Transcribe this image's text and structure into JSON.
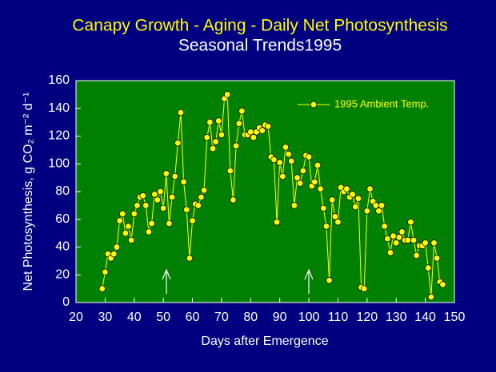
{
  "chart_data": {
    "type": "line",
    "title": "Canapy Growth - Aging - Daily Net Photosynthesis",
    "subtitle": "Seasonal Trends1995",
    "xlabel": "Days after Emergence",
    "ylabel": "Net Photosynthesis, g CO₂ m⁻² d⁻¹",
    "x": [
      29,
      30,
      31,
      32,
      33,
      34,
      35,
      36,
      37,
      38,
      39,
      40,
      41,
      42,
      43,
      44,
      45,
      46,
      47,
      48,
      49,
      50,
      51,
      52,
      53,
      54,
      55,
      56,
      57,
      58,
      59,
      60,
      61,
      62,
      63,
      64,
      65,
      66,
      67,
      68,
      69,
      70,
      71,
      72,
      73,
      74,
      75,
      76,
      77,
      78,
      79,
      80,
      81,
      82,
      83,
      84,
      85,
      86,
      87,
      88,
      89,
      90,
      91,
      92,
      93,
      94,
      95,
      96,
      97,
      98,
      99,
      100,
      101,
      102,
      103,
      104,
      105,
      106,
      107,
      108,
      109,
      110,
      111,
      112,
      113,
      114,
      115,
      116,
      117,
      118,
      119,
      120,
      121,
      122,
      123,
      124,
      125,
      126,
      127,
      128,
      129,
      130,
      131,
      132,
      133,
      134,
      135,
      136,
      137,
      138,
      139,
      140,
      141,
      142,
      143,
      144,
      145,
      146
    ],
    "series": [
      {
        "name": "1995 Ambient Temp.",
        "color": "#ffff00",
        "marker_color": "#ffff00",
        "values": [
          10,
          22,
          35,
          32,
          35,
          40,
          59,
          64,
          50,
          55,
          45,
          64,
          70,
          76,
          77,
          70,
          51,
          57,
          78,
          74,
          80,
          68,
          93,
          57,
          76,
          91,
          115,
          137,
          87,
          67,
          32,
          59,
          71,
          70,
          76,
          81,
          119,
          130,
          111,
          116,
          131,
          121,
          147,
          150,
          95,
          74,
          113,
          129,
          138,
          121,
          121,
          123,
          119,
          123,
          126,
          124,
          128,
          127,
          105,
          103,
          58,
          101,
          91,
          112,
          107,
          102,
          70,
          90,
          86,
          95,
          106,
          105,
          84,
          87,
          99,
          82,
          68,
          55,
          16,
          74,
          62,
          58,
          83,
          80,
          82,
          76,
          78,
          69,
          75,
          11,
          10,
          66,
          82,
          73,
          70,
          66,
          70,
          55,
          46,
          36,
          48,
          43,
          47,
          51,
          45,
          45,
          58,
          45,
          34,
          41,
          41,
          43,
          25,
          4,
          43,
          32,
          15,
          13
        ]
      }
    ],
    "xlim": [
      20,
      150
    ],
    "xticks": [
      20,
      30,
      40,
      50,
      60,
      70,
      80,
      90,
      100,
      110,
      120,
      130,
      140,
      150
    ],
    "ylim": [
      0,
      160
    ],
    "yticks": [
      0,
      20,
      40,
      60,
      80,
      100,
      120,
      140,
      160
    ]
  }
}
